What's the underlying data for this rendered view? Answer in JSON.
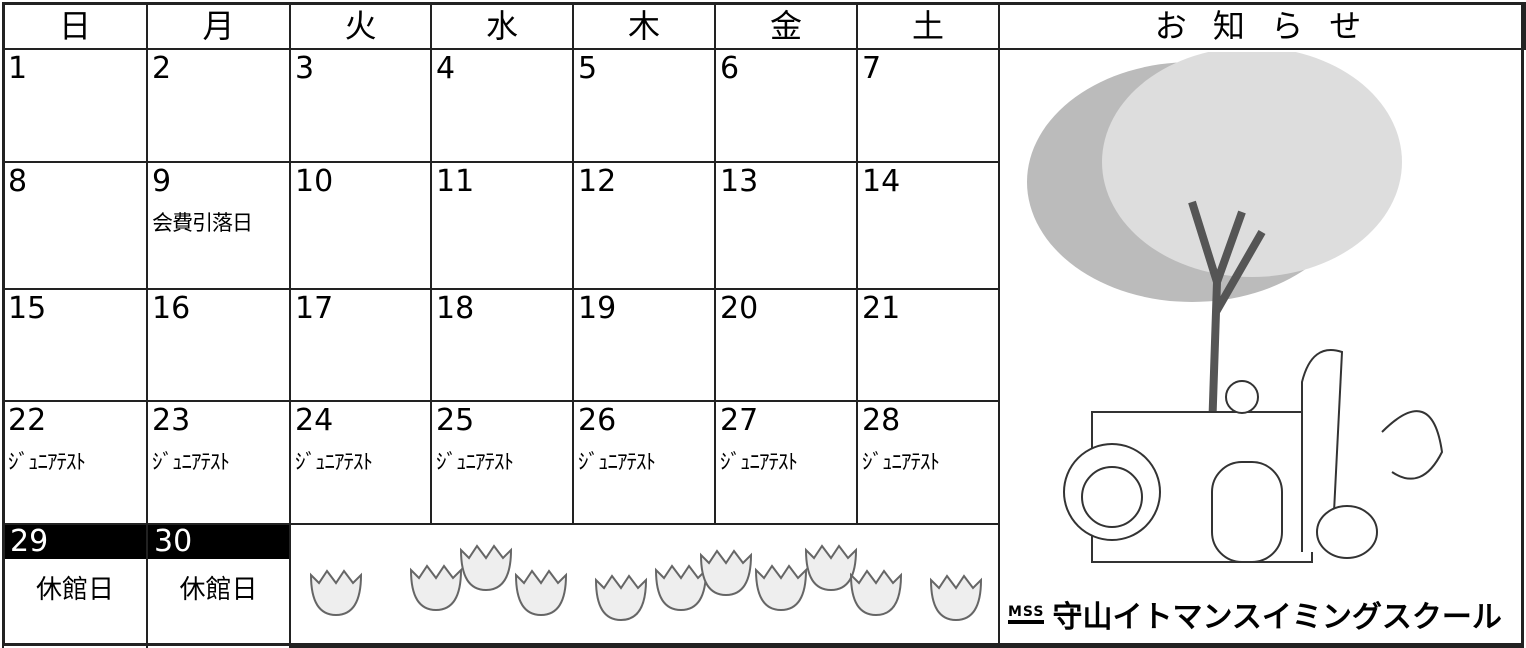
{
  "calendar": {
    "weekdays": [
      "日",
      "月",
      "火",
      "水",
      "木",
      "金",
      "土"
    ],
    "weeks": [
      [
        {
          "day": 1
        },
        {
          "day": 2
        },
        {
          "day": 3
        },
        {
          "day": 4
        },
        {
          "day": 5
        },
        {
          "day": 6
        },
        {
          "day": 7
        }
      ],
      [
        {
          "day": 8
        },
        {
          "day": 9,
          "note": "会費引落日"
        },
        {
          "day": 10
        },
        {
          "day": 11
        },
        {
          "day": 12
        },
        {
          "day": 13
        },
        {
          "day": 14
        }
      ],
      [
        {
          "day": 15
        },
        {
          "day": 16
        },
        {
          "day": 17
        },
        {
          "day": 18
        },
        {
          "day": 19
        },
        {
          "day": 20
        },
        {
          "day": 21
        }
      ],
      [
        {
          "day": 22,
          "note": "ｼﾞｭﾆｱﾃｽﾄ"
        },
        {
          "day": 23,
          "note": "ｼﾞｭﾆｱﾃｽﾄ"
        },
        {
          "day": 24,
          "note": "ｼﾞｭﾆｱﾃｽﾄ"
        },
        {
          "day": 25,
          "note": "ｼﾞｭﾆｱﾃｽﾄ"
        },
        {
          "day": 26,
          "note": "ｼﾞｭﾆｱﾃｽﾄ"
        },
        {
          "day": 27,
          "note": "ｼﾞｭﾆｱﾃｽﾄ"
        },
        {
          "day": 28,
          "note": "ｼﾞｭﾆｱﾃｽﾄ"
        }
      ],
      [
        {
          "day": 29,
          "note": "休館日",
          "highlight": true
        },
        {
          "day": 30,
          "note": "休館日",
          "highlight": true
        }
      ]
    ]
  },
  "notice": {
    "title": "お 知 ら せ",
    "logo_mark": "MSS",
    "logo_text": "守山イトマンスイミングスクール"
  }
}
